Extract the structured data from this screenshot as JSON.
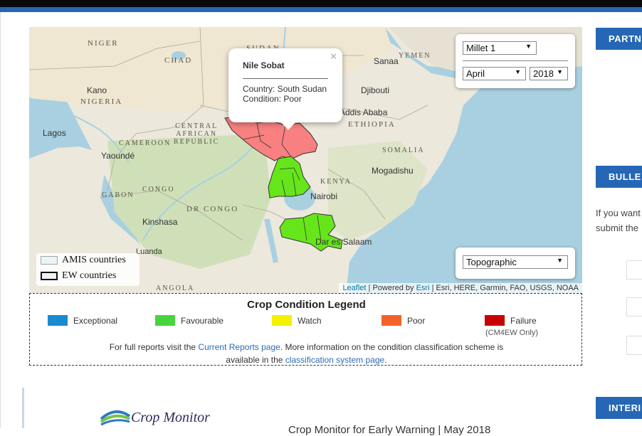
{
  "map": {
    "country_labels": {
      "niger": "NIGER",
      "chad": "CHAD",
      "sudan": "SUDAN",
      "nigeria": "NIGERIA",
      "car": "CENTRAL\nAFRICAN\nREPUBLIC",
      "cameroon": "CAMEROON",
      "ethiopia": "ETHIOPIA",
      "somalia": "SOMALIA",
      "kenya": "KENYA",
      "gabon": "GABON",
      "congo": "CONGO",
      "drc": "DR CONGO",
      "angola": "ANGOLA",
      "yemen": "YEMEN"
    },
    "city_labels": {
      "kano": "Kano",
      "lagos": "Lagos",
      "yaounde": "Yaoundé",
      "djibouti": "Djibouti",
      "addis": "Addis Ababa",
      "sanaa": "Sanaa",
      "mogadishu": "Mogadishu",
      "nairobi": "Nairobi",
      "kinshasa": "Kinshasa",
      "luanda": "Luanda",
      "dar": "Dar es Salaam"
    },
    "popup": {
      "title": "Nile Sobat",
      "country_line": "Country: South Sudan",
      "condition_line": "Condition: Poor",
      "close": "×"
    },
    "controls": {
      "crop": "Millet 1",
      "month": "April",
      "year": "2018",
      "basemap": "Topographic"
    },
    "legend": {
      "amis": "AMIS countries",
      "ew": "EW countries"
    },
    "attribution": {
      "leaflet": "Leaflet",
      "powered": " | Powered by ",
      "esri": "Esri",
      "sources": " | Esri, HERE, Garmin, FAO, USGS, NOAA"
    },
    "colors": {
      "poor_region": "#f88080",
      "favourable_region": "#66e61a"
    }
  },
  "crop_legend": {
    "title": "Crop Condition Legend",
    "items": [
      {
        "label": "Exceptional",
        "color": "#1a8ad1"
      },
      {
        "label": "Favourable",
        "color": "#48d43c"
      },
      {
        "label": "Watch",
        "color": "#f5f000"
      },
      {
        "label": "Poor",
        "color": "#f4622b"
      },
      {
        "label": "Failure",
        "color": "#c90000"
      }
    ],
    "failure_note": "(CM4EW Only)",
    "note_prefix": "For full reports visit the ",
    "current_reports_link": "Current Reports page",
    "note_middle": ". More information on the condition classification scheme is",
    "note_line2_prefix": "available in the ",
    "classification_link": "classification system page",
    "note_end": "."
  },
  "sidebar": {
    "partners": "PARTN",
    "bulletin": "BULLE",
    "interim": "INTERI",
    "bulletin_text_1": "If you want",
    "bulletin_text_2": "submit the"
  },
  "bottom": {
    "logo_text": "Crop Monitor",
    "cut_text": "Crop Monitor for Early Warning | May 2018"
  }
}
